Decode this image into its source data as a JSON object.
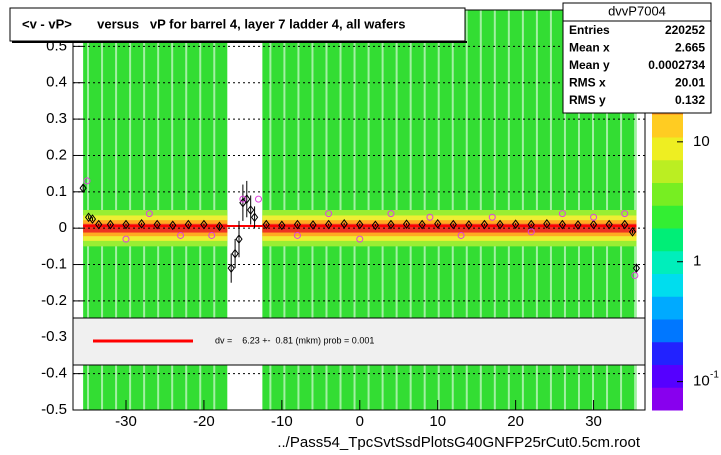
{
  "chart_data": {
    "type": "profile2d",
    "title": "<v - vP>       versus   vP for barrel 4, layer 7 ladder 4, all wafers",
    "xlabel": "../Pass54_TpcSvtSsdPlotsG40GNFP25rCut0.5cm.root",
    "xlim": [
      -36.8,
      36.6
    ],
    "ylim": [
      -0.5,
      0.6
    ],
    "xticks": [
      -30,
      -20,
      -10,
      0,
      10,
      20,
      30
    ],
    "yticks": [
      -0.5,
      -0.4,
      -0.3,
      -0.2,
      -0.1,
      0,
      0.1,
      0.2,
      0.3,
      0.4,
      0.5
    ],
    "grid": true,
    "zlim": [
      0.058,
      63
    ],
    "zlog": true,
    "zticks": [
      {
        "value": 10,
        "label": "10"
      },
      {
        "value": 1,
        "label": "1"
      },
      {
        "value": 0.1,
        "label": "10",
        "exponent": "-1"
      }
    ],
    "series": [
      {
        "name": "profile",
        "color": "#000000",
        "x": [
          -35.5,
          -34.8,
          -34.3,
          -33.5,
          -32,
          -30,
          -28,
          -26,
          -24,
          -22,
          -20,
          -18,
          -16.5,
          -16,
          -15.5,
          -15,
          -14.5,
          -14,
          -13.5,
          -12,
          -10,
          -8,
          -6,
          -4,
          -2,
          0,
          2,
          4,
          6,
          8,
          10,
          12,
          14,
          16,
          18,
          20,
          22,
          24,
          26,
          28,
          30,
          32,
          34,
          35,
          35.5
        ],
        "values": [
          0.11,
          0.03,
          0.025,
          0.01,
          0.01,
          0.01,
          0.012,
          0.01,
          0.008,
          0.01,
          0.01,
          0.005,
          -0.11,
          -0.07,
          -0.03,
          0.07,
          0.08,
          0.05,
          0.03,
          0.01,
          0.008,
          0.01,
          0.009,
          0.01,
          0.012,
          0.01,
          0.008,
          0.01,
          0.011,
          0.01,
          0.012,
          0.01,
          0.009,
          0.01,
          0.01,
          0.011,
          0.01,
          0.012,
          0.01,
          0.009,
          0.01,
          0.01,
          0.01,
          -0.01,
          -0.11
        ],
        "errors": [
          0.01,
          0.005,
          0.005,
          0.003,
          0.003,
          0.003,
          0.003,
          0.003,
          0.003,
          0.003,
          0.003,
          0.005,
          0.04,
          0.04,
          0.05,
          0.05,
          0.05,
          0.04,
          0.03,
          0.003,
          0.003,
          0.003,
          0.003,
          0.003,
          0.003,
          0.003,
          0.003,
          0.003,
          0.003,
          0.003,
          0.003,
          0.003,
          0.003,
          0.003,
          0.003,
          0.003,
          0.003,
          0.003,
          0.003,
          0.003,
          0.003,
          0.003,
          0.003,
          0.005,
          0.01
        ]
      },
      {
        "name": "mean",
        "color": "#dd44dd",
        "x": [
          -35,
          -30,
          -27,
          -23,
          -19,
          -15,
          -13,
          -8,
          -4,
          0,
          4,
          9,
          13,
          17,
          22,
          26,
          30,
          34,
          35.3
        ],
        "values": [
          0.13,
          -0.03,
          0.04,
          -0.02,
          -0.02,
          0.08,
          0.08,
          -0.02,
          0.04,
          -0.03,
          0.04,
          0.03,
          -0.02,
          0.03,
          -0.01,
          0.04,
          0.03,
          0.04,
          -0.13
        ]
      }
    ],
    "fit_line_y": 0.006,
    "fit_color": "#ff0000",
    "fit_text": "dv =    6.23 +-  0.81 (mkm) prob = 0.001",
    "stats": {
      "name": "dvvP7004",
      "rows": [
        [
          "Entries",
          "220252"
        ],
        [
          "Mean x",
          "2.665"
        ],
        [
          "Mean y",
          "0.0002734"
        ],
        [
          "RMS x",
          "20.01"
        ],
        [
          "RMS y",
          "0.132"
        ]
      ]
    }
  }
}
